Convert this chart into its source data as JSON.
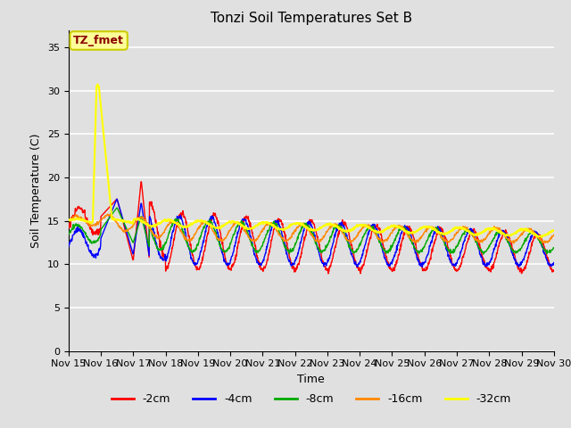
{
  "title": "Tonzi Soil Temperatures Set B",
  "xlabel": "Time",
  "ylabel": "Soil Temperature (C)",
  "ylim": [
    0,
    37
  ],
  "yticks": [
    0,
    5,
    10,
    15,
    20,
    25,
    30,
    35
  ],
  "annotation_text": "TZ_fmet",
  "annotation_color": "#8B0000",
  "annotation_bg": "#FFFF99",
  "annotation_border": "#CCCC00",
  "bg_color": "#E0E0E0",
  "grid_color": "#FFFFFF",
  "series": {
    "-2cm": {
      "color": "#FF0000",
      "linewidth": 1.0
    },
    "-4cm": {
      "color": "#0000FF",
      "linewidth": 1.0
    },
    "-8cm": {
      "color": "#00AA00",
      "linewidth": 1.0
    },
    "-16cm": {
      "color": "#FF8800",
      "linewidth": 1.0
    },
    "-32cm": {
      "color": "#FFFF00",
      "linewidth": 1.5
    }
  },
  "legend_order": [
    "-2cm",
    "-4cm",
    "-8cm",
    "-16cm",
    "-32cm"
  ],
  "xtick_labels": [
    "Nov 15",
    "Nov 16",
    "Nov 17",
    "Nov 18",
    "Nov 19",
    "Nov 20",
    "Nov 21",
    "Nov 22",
    "Nov 23",
    "Nov 24",
    "Nov 25",
    "Nov 26",
    "Nov 27",
    "Nov 28",
    "Nov 29",
    "Nov 30"
  ],
  "n_points": 1440
}
